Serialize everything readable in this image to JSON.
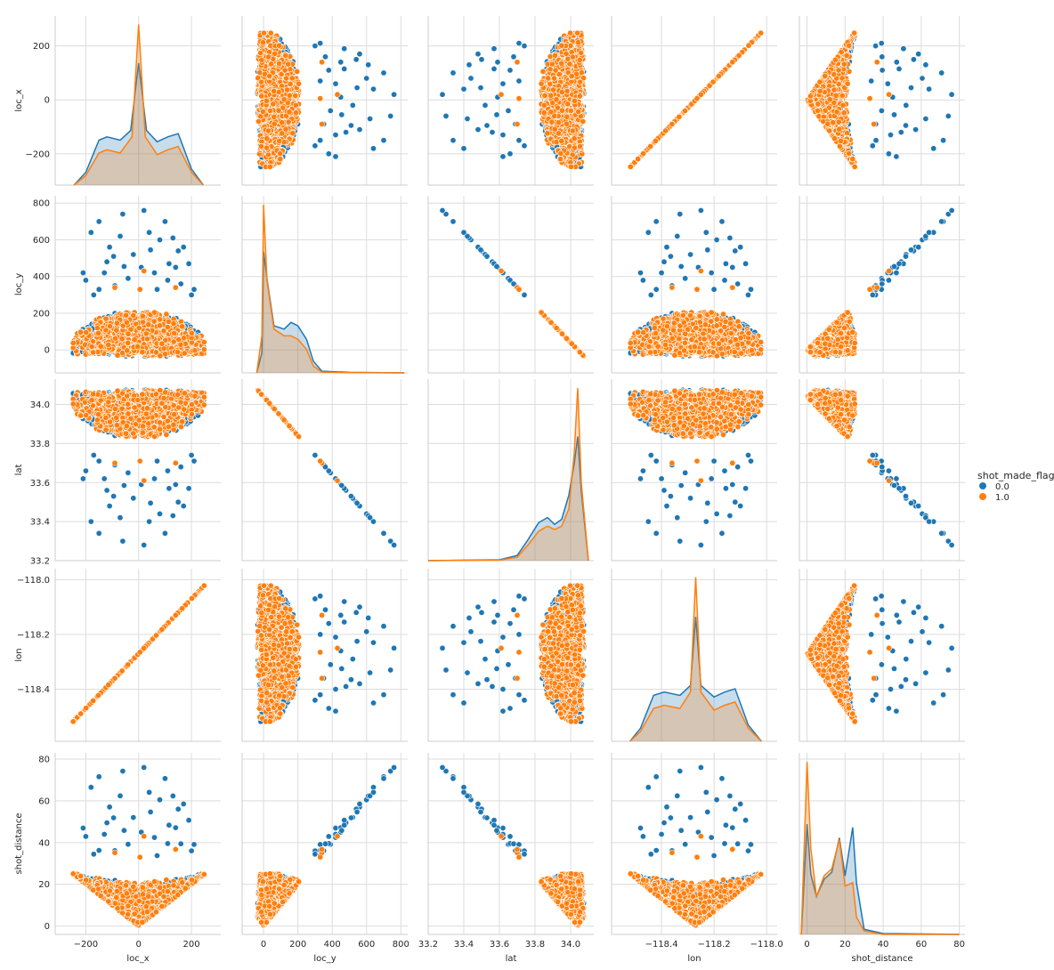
{
  "chart_data": {
    "type": "scatter",
    "kind": "pairplot",
    "variables": [
      "loc_x",
      "loc_y",
      "lat",
      "lon",
      "shot_distance"
    ],
    "axis_labels": [
      "loc_x",
      "loc_y",
      "lat",
      "lon",
      "shot_distance"
    ],
    "ticks": {
      "loc_x": {
        "values": [
          -200,
          0,
          200
        ],
        "labels": [
          "−200",
          "0",
          "200"
        ],
        "lim": [
          -316,
          311
        ]
      },
      "loc_y": {
        "values": [
          0,
          200,
          400,
          600,
          800
        ],
        "labels": [
          "0",
          "200",
          "400",
          "600",
          "800"
        ],
        "lim": [
          -125,
          840
        ]
      },
      "lat": {
        "values": [
          33.2,
          33.4,
          33.6,
          33.8,
          34.0
        ],
        "labels": [
          "33.2",
          "33.4",
          "33.6",
          "33.8",
          "34.0"
        ],
        "lim": [
          33.2,
          34.13
        ]
      },
      "lon": {
        "values": [
          -118.6,
          -118.4,
          -118.2,
          -118.0
        ],
        "labels": [
          "−118.6",
          "−118.4",
          "−118.2",
          "−118.0"
        ],
        "lim": [
          -118.59,
          -117.96
        ]
      },
      "shot_distance": {
        "values": [
          0,
          20,
          40,
          60,
          80
        ],
        "labels": [
          "0",
          "20",
          "40",
          "60",
          "80"
        ],
        "lim": [
          -4,
          83
        ]
      }
    },
    "diag_ylim": {
      "loc_x": [
        -250,
        250
      ],
      "loc_y": [
        -20,
        820
      ],
      "lat": [
        33.2,
        34.13
      ],
      "lon": [
        -118.52,
        -118.02
      ],
      "shot_distance": [
        -3,
        80
      ]
    },
    "hue": {
      "title": "shot_made_flag",
      "levels": [
        "0.0",
        "1.0"
      ],
      "colors": [
        "#1f77b4",
        "#ff7f0e"
      ]
    },
    "diagonal": "kde",
    "kde": {
      "loc_x": {
        "0.0": [
          [
            -245,
            0.0
          ],
          [
            -200,
            0.08
          ],
          [
            -150,
            0.28
          ],
          [
            -120,
            0.3
          ],
          [
            -70,
            0.28
          ],
          [
            -30,
            0.34
          ],
          [
            0,
            0.76
          ],
          [
            30,
            0.34
          ],
          [
            70,
            0.27
          ],
          [
            110,
            0.3
          ],
          [
            150,
            0.32
          ],
          [
            200,
            0.1
          ],
          [
            245,
            0.0
          ]
        ],
        "1.0": [
          [
            -245,
            0.0
          ],
          [
            -200,
            0.06
          ],
          [
            -150,
            0.2
          ],
          [
            -120,
            0.22
          ],
          [
            -70,
            0.2
          ],
          [
            -25,
            0.3
          ],
          [
            0,
            1.0
          ],
          [
            25,
            0.3
          ],
          [
            70,
            0.19
          ],
          [
            110,
            0.22
          ],
          [
            150,
            0.24
          ],
          [
            200,
            0.08
          ],
          [
            245,
            0.0
          ]
        ]
      },
      "loc_y": {
        "0.0": [
          [
            -40,
            0.0
          ],
          [
            -10,
            0.12
          ],
          [
            0,
            0.72
          ],
          [
            20,
            0.56
          ],
          [
            60,
            0.28
          ],
          [
            120,
            0.26
          ],
          [
            160,
            0.3
          ],
          [
            200,
            0.28
          ],
          [
            250,
            0.2
          ],
          [
            290,
            0.07
          ],
          [
            340,
            0.01
          ],
          [
            500,
            0.003
          ],
          [
            820,
            0.0
          ]
        ],
        "1.0": [
          [
            -40,
            0.0
          ],
          [
            -10,
            0.22
          ],
          [
            0,
            1.0
          ],
          [
            20,
            0.55
          ],
          [
            60,
            0.26
          ],
          [
            120,
            0.22
          ],
          [
            160,
            0.22
          ],
          [
            200,
            0.2
          ],
          [
            250,
            0.14
          ],
          [
            290,
            0.04
          ],
          [
            340,
            0.005
          ],
          [
            500,
            0.001
          ],
          [
            820,
            0.0
          ]
        ]
      },
      "lat": {
        "0.0": [
          [
            33.2,
            0.0
          ],
          [
            33.6,
            0.005
          ],
          [
            33.7,
            0.03
          ],
          [
            33.76,
            0.12
          ],
          [
            33.82,
            0.22
          ],
          [
            33.87,
            0.25
          ],
          [
            33.91,
            0.21
          ],
          [
            33.95,
            0.24
          ],
          [
            33.99,
            0.38
          ],
          [
            34.02,
            0.56
          ],
          [
            34.04,
            0.72
          ],
          [
            34.06,
            0.4
          ],
          [
            34.1,
            0.0
          ]
        ],
        "1.0": [
          [
            33.2,
            0.0
          ],
          [
            33.6,
            0.003
          ],
          [
            33.7,
            0.02
          ],
          [
            33.76,
            0.09
          ],
          [
            33.82,
            0.17
          ],
          [
            33.87,
            0.2
          ],
          [
            33.91,
            0.18
          ],
          [
            33.95,
            0.2
          ],
          [
            33.99,
            0.3
          ],
          [
            34.02,
            0.62
          ],
          [
            34.04,
            1.0
          ],
          [
            34.06,
            0.45
          ],
          [
            34.1,
            0.0
          ]
        ]
      },
      "lon": {
        "0.0": [
          [
            -118.52,
            0.0
          ],
          [
            -118.48,
            0.08
          ],
          [
            -118.43,
            0.28
          ],
          [
            -118.39,
            0.3
          ],
          [
            -118.33,
            0.28
          ],
          [
            -118.29,
            0.34
          ],
          [
            -118.27,
            0.76
          ],
          [
            -118.25,
            0.34
          ],
          [
            -118.2,
            0.27
          ],
          [
            -118.16,
            0.3
          ],
          [
            -118.12,
            0.32
          ],
          [
            -118.07,
            0.1
          ],
          [
            -118.02,
            0.0
          ]
        ],
        "1.0": [
          [
            -118.52,
            0.0
          ],
          [
            -118.48,
            0.06
          ],
          [
            -118.43,
            0.2
          ],
          [
            -118.39,
            0.22
          ],
          [
            -118.33,
            0.2
          ],
          [
            -118.29,
            0.3
          ],
          [
            -118.27,
            1.0
          ],
          [
            -118.25,
            0.3
          ],
          [
            -118.2,
            0.19
          ],
          [
            -118.16,
            0.22
          ],
          [
            -118.12,
            0.24
          ],
          [
            -118.07,
            0.08
          ],
          [
            -118.02,
            0.0
          ]
        ]
      },
      "shot_distance": {
        "0.0": [
          [
            -3,
            0.0
          ],
          [
            0,
            0.64
          ],
          [
            2,
            0.35
          ],
          [
            5,
            0.22
          ],
          [
            9,
            0.32
          ],
          [
            13,
            0.36
          ],
          [
            17,
            0.56
          ],
          [
            20,
            0.34
          ],
          [
            24,
            0.62
          ],
          [
            26,
            0.3
          ],
          [
            30,
            0.03
          ],
          [
            40,
            0.005
          ],
          [
            80,
            0.0
          ]
        ],
        "1.0": [
          [
            -3,
            0.0
          ],
          [
            0,
            1.0
          ],
          [
            2,
            0.5
          ],
          [
            5,
            0.22
          ],
          [
            9,
            0.34
          ],
          [
            13,
            0.38
          ],
          [
            17,
            0.55
          ],
          [
            20,
            0.28
          ],
          [
            24,
            0.3
          ],
          [
            26,
            0.1
          ],
          [
            30,
            0.02
          ],
          [
            40,
            0.0
          ],
          [
            80,
            0.0
          ]
        ]
      }
    },
    "outliers": {
      "0.0": [
        [
          -180,
          640
        ],
        [
          -150,
          700
        ],
        [
          -110,
          560
        ],
        [
          -60,
          740
        ],
        [
          20,
          760
        ],
        [
          80,
          600
        ],
        [
          130,
          610
        ],
        [
          170,
          560
        ],
        [
          -200,
          380
        ],
        [
          -150,
          330
        ],
        [
          -90,
          350
        ],
        [
          -40,
          390
        ],
        [
          60,
          420
        ],
        [
          110,
          380
        ],
        [
          160,
          360
        ],
        [
          200,
          300
        ],
        [
          -210,
          420
        ],
        [
          150,
          540
        ],
        [
          -120,
          480
        ],
        [
          190,
          470
        ],
        [
          -70,
          620
        ],
        [
          40,
          640
        ],
        [
          100,
          700
        ],
        [
          -20,
          520
        ],
        [
          10,
          450
        ],
        [
          -170,
          300
        ],
        [
          210,
          330
        ],
        [
          70,
          330
        ],
        [
          -130,
          420
        ],
        [
          140,
          450
        ],
        [
          -95,
          510
        ],
        [
          45,
          545
        ],
        [
          115,
          470
        ],
        [
          -55,
          455
        ]
      ],
      "1.0": [
        [
          20,
          430
        ],
        [
          -90,
          340
        ],
        [
          140,
          340
        ],
        [
          5,
          330
        ]
      ]
    },
    "grid": true
  }
}
